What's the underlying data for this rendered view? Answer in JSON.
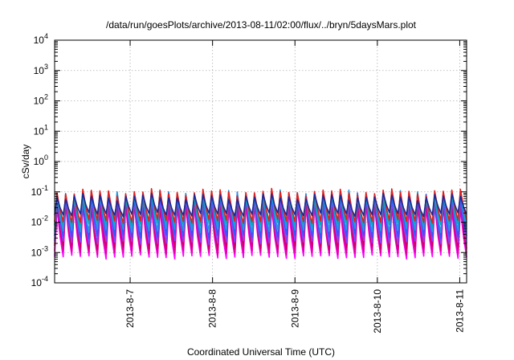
{
  "chart_data": {
    "type": "line",
    "title": "/data/run/goesPlots/archive/2013-08-11/02:00/flux/../bryn/5daysMars.plot",
    "xlabel": "Coordinated Universal Time (UTC)",
    "ylabel": "cSv/day",
    "yscale": "log",
    "ylim": [
      0.0001,
      10000
    ],
    "y_ticks": [
      {
        "base": "10",
        "exp": "4"
      },
      {
        "base": "10",
        "exp": "3"
      },
      {
        "base": "10",
        "exp": "2"
      },
      {
        "base": "10",
        "exp": "1"
      },
      {
        "base": "10",
        "exp": "0"
      },
      {
        "base": "10",
        "exp": "-1"
      },
      {
        "base": "10",
        "exp": "-2"
      },
      {
        "base": "10",
        "exp": "-3"
      },
      {
        "base": "10",
        "exp": "-4"
      }
    ],
    "xlim": [
      "2013-08-06T02:00",
      "2013-08-11T02:00"
    ],
    "x_ticks": [
      "2013-8-7",
      "2013-8-8",
      "2013-8-9",
      "2013-8-10",
      "2013-8-11"
    ],
    "grid": true,
    "pattern": {
      "description_note": "sawtooth: sharp rise then decay, about 48 cycles over 5 days",
      "cycles": 48
    },
    "series": [
      {
        "color": "#ff00ff",
        "peak": 0.03,
        "trough": 0.0008
      },
      {
        "color": "#e0009a",
        "peak": 0.04,
        "trough": 0.0011
      },
      {
        "color": "#cc0066",
        "peak": 0.05,
        "trough": 0.0016
      },
      {
        "color": "#8844ff",
        "peak": 0.065,
        "trough": 0.0024
      },
      {
        "color": "#3355ff",
        "peak": 0.08,
        "trough": 0.0038
      },
      {
        "color": "#2299dd",
        "peak": 0.09,
        "trough": 0.006
      },
      {
        "color": "#00aabb",
        "peak": 0.08,
        "trough": 0.0095
      },
      {
        "color": "#e02020",
        "peak": 0.1,
        "trough": 0.012
      },
      {
        "color": "#1a2a99",
        "peak": 0.07,
        "trough": 0.02
      }
    ]
  }
}
